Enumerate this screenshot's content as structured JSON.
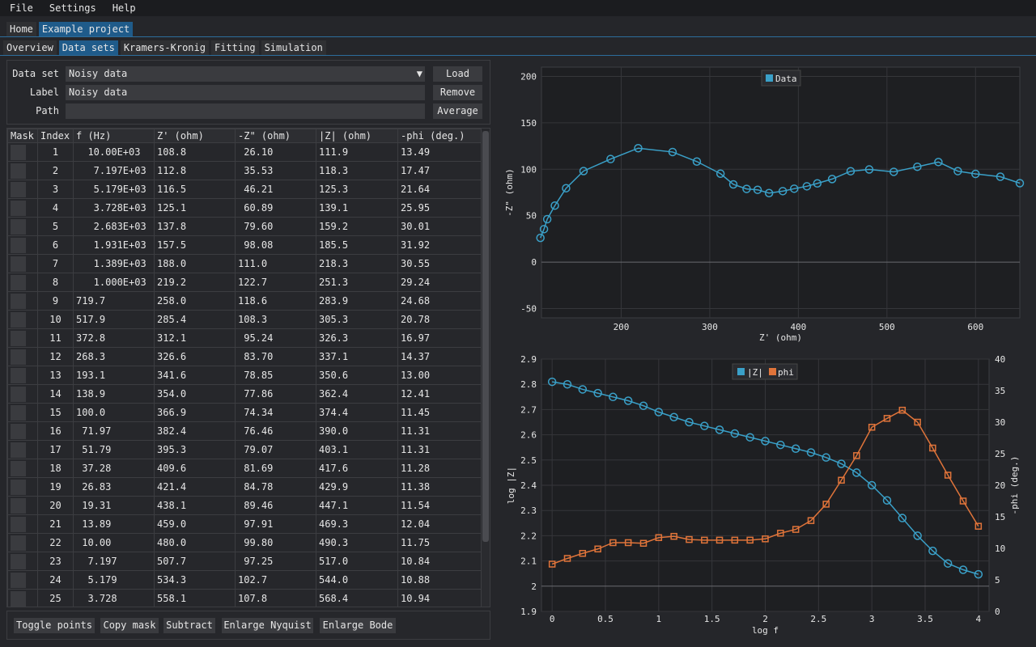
{
  "menu": [
    "File",
    "Settings",
    "Help"
  ],
  "project_tabs": [
    {
      "label": "Home",
      "active": false
    },
    {
      "label": "Example project",
      "active": true
    }
  ],
  "section_tabs": [
    {
      "label": "Overview",
      "active": false
    },
    {
      "label": "Data sets",
      "active": true
    },
    {
      "label": "Kramers-Kronig",
      "active": false
    },
    {
      "label": "Fitting",
      "active": false
    },
    {
      "label": "Simulation",
      "active": false
    }
  ],
  "dataset_form": {
    "dataset_label": "Data set",
    "dataset_value": "Noisy data",
    "label_label": "Label",
    "label_value": "Noisy data",
    "path_label": "Path",
    "path_value": "",
    "load_button": "Load",
    "remove_button": "Remove",
    "average_button": "Average"
  },
  "table": {
    "headers": [
      "Mask",
      "Index",
      "f (Hz)",
      "Z' (ohm)",
      "-Z\" (ohm)",
      "|Z| (ohm)",
      "-phi (deg.)"
    ],
    "rows": [
      [
        "1",
        "  10.00E+03",
        "108.8",
        " 26.10",
        "111.9",
        "13.49"
      ],
      [
        "2",
        "   7.197E+03",
        "112.8",
        " 35.53",
        "118.3",
        "17.47"
      ],
      [
        "3",
        "   5.179E+03",
        "116.5",
        " 46.21",
        "125.3",
        "21.64"
      ],
      [
        "4",
        "   3.728E+03",
        "125.1",
        " 60.89",
        "139.1",
        "25.95"
      ],
      [
        "5",
        "   2.683E+03",
        "137.8",
        " 79.60",
        "159.2",
        "30.01"
      ],
      [
        "6",
        "   1.931E+03",
        "157.5",
        " 98.08",
        "185.5",
        "31.92"
      ],
      [
        "7",
        "   1.389E+03",
        "188.0",
        "111.0",
        "218.3",
        "30.55"
      ],
      [
        "8",
        "   1.000E+03",
        "219.2",
        "122.7",
        "251.3",
        "29.24"
      ],
      [
        "9",
        "719.7",
        "258.0",
        "118.6",
        "283.9",
        "24.68"
      ],
      [
        "10",
        "517.9",
        "285.4",
        "108.3",
        "305.3",
        "20.78"
      ],
      [
        "11",
        "372.8",
        "312.1",
        " 95.24",
        "326.3",
        "16.97"
      ],
      [
        "12",
        "268.3",
        "326.6",
        " 83.70",
        "337.1",
        "14.37"
      ],
      [
        "13",
        "193.1",
        "341.6",
        " 78.85",
        "350.6",
        "13.00"
      ],
      [
        "14",
        "138.9",
        "354.0",
        " 77.86",
        "362.4",
        "12.41"
      ],
      [
        "15",
        "100.0",
        "366.9",
        " 74.34",
        "374.4",
        "11.45"
      ],
      [
        "16",
        " 71.97",
        "382.4",
        " 76.46",
        "390.0",
        "11.31"
      ],
      [
        "17",
        " 51.79",
        "395.3",
        " 79.07",
        "403.1",
        "11.31"
      ],
      [
        "18",
        " 37.28",
        "409.6",
        " 81.69",
        "417.6",
        "11.28"
      ],
      [
        "19",
        " 26.83",
        "421.4",
        " 84.78",
        "429.9",
        "11.38"
      ],
      [
        "20",
        " 19.31",
        "438.1",
        " 89.46",
        "447.1",
        "11.54"
      ],
      [
        "21",
        " 13.89",
        "459.0",
        " 97.91",
        "469.3",
        "12.04"
      ],
      [
        "22",
        " 10.00",
        "480.0",
        " 99.80",
        "490.3",
        "11.75"
      ],
      [
        "23",
        "  7.197",
        "507.7",
        " 97.25",
        "517.0",
        "10.84"
      ],
      [
        "24",
        "  5.179",
        "534.3",
        "102.7",
        "544.0",
        "10.88"
      ],
      [
        "25",
        "  3.728",
        "558.1",
        "107.8",
        "568.4",
        "10.94"
      ]
    ]
  },
  "bottom_buttons": [
    "Toggle points",
    "Copy mask",
    "Subtract",
    "Enlarge Nyquist",
    "Enlarge Bode"
  ],
  "colors": {
    "accent": "#1f5b8a",
    "series_blue": "#3aa0c8",
    "series_orange": "#e0743a"
  },
  "chart_data": [
    {
      "type": "scatter",
      "legend": [
        "Data"
      ],
      "legend_position": "top-center",
      "xlabel": "Z' (ohm)",
      "ylabel": "-Z\" (ohm)",
      "xlim": [
        110,
        650
      ],
      "ylim": [
        -60,
        210
      ],
      "xticks": [
        200,
        300,
        400,
        500,
        600
      ],
      "yticks": [
        -50,
        0,
        50,
        100,
        150,
        200
      ],
      "grid": true,
      "series": [
        {
          "name": "Data",
          "x": [
            108.8,
            112.8,
            116.5,
            125.1,
            137.8,
            157.5,
            188.0,
            219.2,
            258.0,
            285.4,
            312.1,
            326.6,
            341.6,
            354.0,
            366.9,
            382.4,
            395.3,
            409.6,
            421.4,
            438.1,
            459.0,
            480.0,
            507.7,
            534.3,
            558.1,
            580,
            600,
            628,
            650
          ],
          "y": [
            26.1,
            35.53,
            46.21,
            60.89,
            79.6,
            98.08,
            111.0,
            122.7,
            118.6,
            108.3,
            95.24,
            83.7,
            78.85,
            77.86,
            74.34,
            76.46,
            79.07,
            81.69,
            84.78,
            89.46,
            97.91,
            99.8,
            97.25,
            102.7,
            107.8,
            98,
            95,
            92,
            85
          ]
        }
      ]
    },
    {
      "type": "scatter",
      "legend": [
        "|Z|",
        "phi"
      ],
      "legend_position": "top-center",
      "xlabel": "log f",
      "ylabel": "log |Z|",
      "y2label": "-phi (deg.)",
      "xlim": [
        -0.1,
        4.1
      ],
      "ylim": [
        1.9,
        2.9
      ],
      "y2lim": [
        0,
        40
      ],
      "xticks": [
        0,
        0.5,
        1,
        1.5,
        2,
        2.5,
        3,
        3.5,
        4
      ],
      "yticks": [
        1.9,
        2,
        2.1,
        2.2,
        2.3,
        2.4,
        2.5,
        2.6,
        2.7,
        2.8,
        2.9
      ],
      "y2ticks": [
        0,
        5,
        10,
        15,
        20,
        25,
        30,
        35,
        40
      ],
      "grid": true,
      "series": [
        {
          "name": "|Z|",
          "x": [
            0,
            0.143,
            0.286,
            0.429,
            0.571,
            0.714,
            0.857,
            1.0,
            1.143,
            1.286,
            1.429,
            1.571,
            1.714,
            1.857,
            2.0,
            2.143,
            2.286,
            2.429,
            2.571,
            2.714,
            2.857,
            3.0,
            3.143,
            3.286,
            3.429,
            3.571,
            3.714,
            3.857,
            4.0
          ],
          "y": [
            2.81,
            2.8,
            2.78,
            2.765,
            2.75,
            2.735,
            2.715,
            2.69,
            2.67,
            2.65,
            2.635,
            2.62,
            2.605,
            2.59,
            2.575,
            2.56,
            2.545,
            2.53,
            2.51,
            2.485,
            2.45,
            2.4,
            2.34,
            2.27,
            2.2,
            2.14,
            2.09,
            2.065,
            2.047
          ]
        },
        {
          "name": "phi",
          "x": [
            0,
            0.143,
            0.286,
            0.429,
            0.571,
            0.714,
            0.857,
            1.0,
            1.143,
            1.286,
            1.429,
            1.571,
            1.714,
            1.857,
            2.0,
            2.143,
            2.286,
            2.429,
            2.571,
            2.714,
            2.857,
            3.0,
            3.143,
            3.286,
            3.429,
            3.571,
            3.714,
            3.857,
            4.0
          ],
          "y": [
            7.5,
            8.4,
            9.2,
            9.9,
            10.9,
            10.9,
            10.8,
            11.7,
            11.9,
            11.4,
            11.3,
            11.3,
            11.3,
            11.3,
            11.5,
            12.4,
            13.0,
            14.4,
            17.0,
            20.8,
            24.7,
            29.2,
            30.6,
            31.9,
            30.0,
            25.9,
            21.6,
            17.5,
            13.5
          ]
        }
      ]
    }
  ]
}
